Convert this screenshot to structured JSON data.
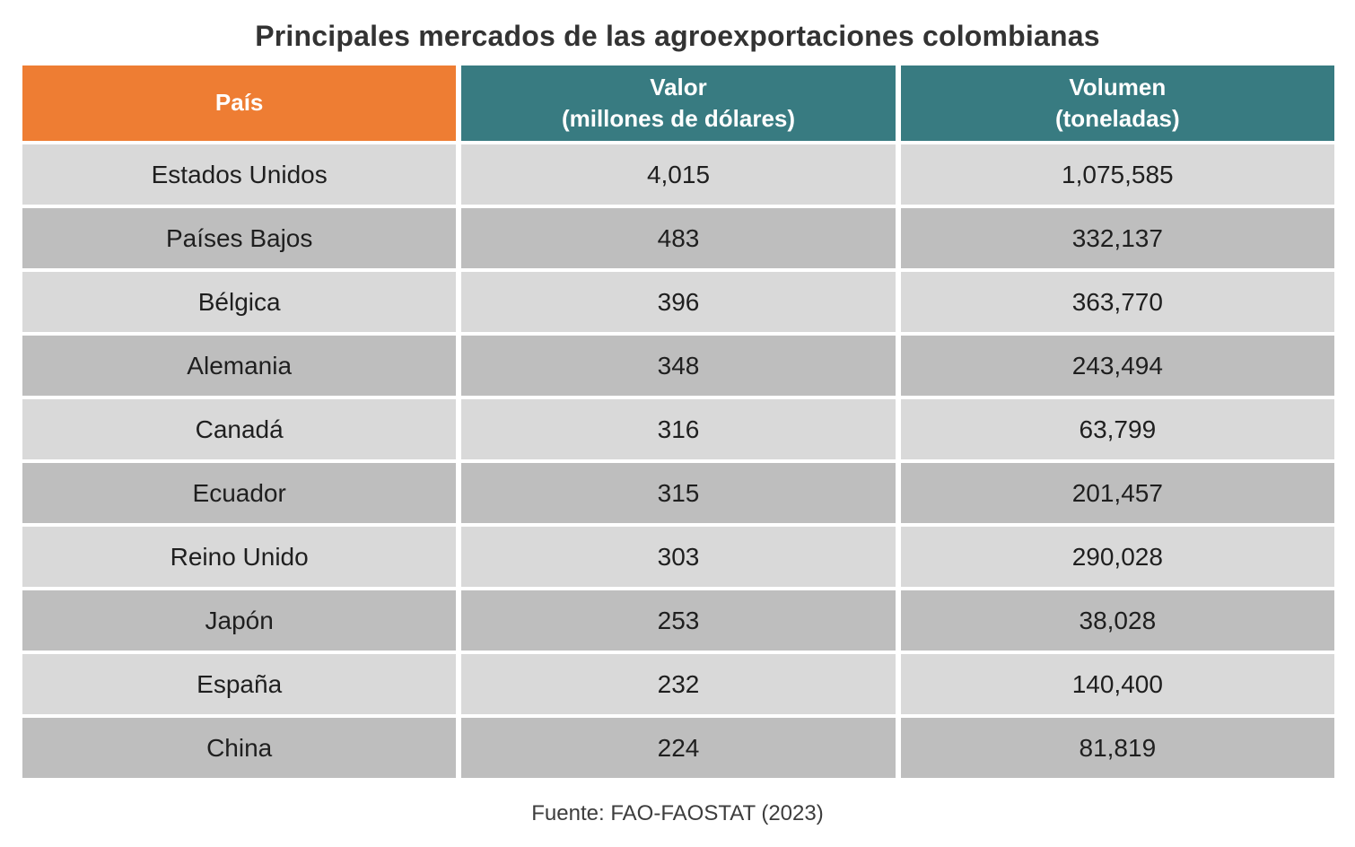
{
  "title": "Principales mercados de las agroexportaciones colombianas",
  "source": "Fuente: FAO-FAOSTAT (2023)",
  "colors": {
    "header_country_bg": "#EE7D33",
    "header_metric_bg": "#387B81",
    "header_text": "#FFFFFF",
    "row_light": "#D9D9D9",
    "row_dark": "#BEBEBE",
    "cell_text": "#1F1F1F",
    "title_text": "#333333"
  },
  "table": {
    "columns": [
      {
        "label": "País",
        "sublabel": ""
      },
      {
        "label": "Valor",
        "sublabel": "(millones de dólares)"
      },
      {
        "label": "Volumen",
        "sublabel": "(toneladas)"
      }
    ],
    "rows": [
      {
        "country": "Estados Unidos",
        "value": "4,015",
        "volume": "1,075,585"
      },
      {
        "country": "Países Bajos",
        "value": "483",
        "volume": "332,137"
      },
      {
        "country": "Bélgica",
        "value": "396",
        "volume": "363,770"
      },
      {
        "country": "Alemania",
        "value": "348",
        "volume": "243,494"
      },
      {
        "country": "Canadá",
        "value": "316",
        "volume": "63,799"
      },
      {
        "country": "Ecuador",
        "value": "315",
        "volume": "201,457"
      },
      {
        "country": "Reino Unido",
        "value": "303",
        "volume": "290,028"
      },
      {
        "country": "Japón",
        "value": "253",
        "volume": "38,028"
      },
      {
        "country": "España",
        "value": "232",
        "volume": "140,400"
      },
      {
        "country": "China",
        "value": "224",
        "volume": "81,819"
      }
    ]
  },
  "chart_data": {
    "type": "table",
    "title": "Principales mercados de las agroexportaciones colombianas",
    "columns": [
      "País",
      "Valor (millones de dólares)",
      "Volumen (toneladas)"
    ],
    "rows": [
      [
        "Estados Unidos",
        4015,
        1075585
      ],
      [
        "Países Bajos",
        483,
        332137
      ],
      [
        "Bélgica",
        396,
        363770
      ],
      [
        "Alemania",
        348,
        243494
      ],
      [
        "Canadá",
        316,
        63799
      ],
      [
        "Ecuador",
        315,
        201457
      ],
      [
        "Reino Unido",
        303,
        290028
      ],
      [
        "Japón",
        253,
        38028
      ],
      [
        "España",
        232,
        140400
      ],
      [
        "China",
        224,
        81819
      ]
    ],
    "source": "Fuente: FAO-FAOSTAT (2023)"
  }
}
